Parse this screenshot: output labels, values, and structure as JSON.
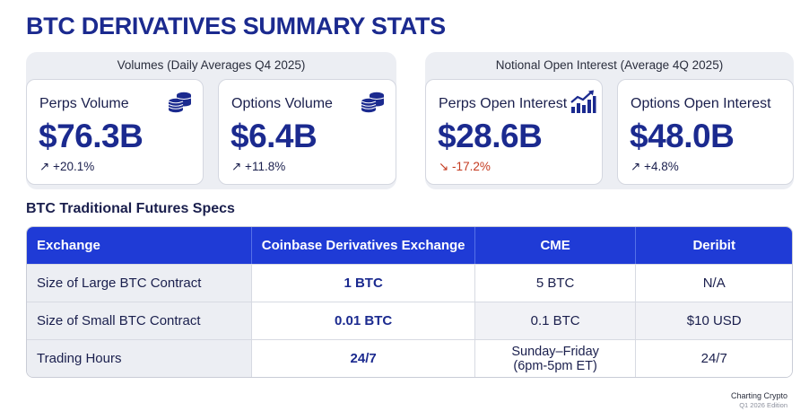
{
  "title": "BTC DERIVATIVES SUMMARY STATS",
  "volumes": {
    "label": "Volumes (Daily Averages Q4 2025)",
    "perps": {
      "label": "Perps Volume",
      "value": "$76.3B",
      "change": "↗ +20.1%",
      "icon": "coins-stack-icon"
    },
    "options": {
      "label": "Options Volume",
      "value": "$6.4B",
      "change": "↗ +11.8%",
      "icon": "coins-stack-icon"
    }
  },
  "open_interest": {
    "label": "Notional Open Interest (Average 4Q 2025)",
    "perps": {
      "label": "Perps Open Interest",
      "value": "$28.6B",
      "change": "↘ -17.2%",
      "icon": "bar-chart-trend-icon"
    },
    "options": {
      "label": "Options Open Interest",
      "value": "$48.0B",
      "change": "↗ +4.8%"
    }
  },
  "specs": {
    "title": "BTC Traditional Futures Specs",
    "headers": [
      "Exchange",
      "Coinbase Derivatives Exchange",
      "CME",
      "Deribit"
    ],
    "rows": [
      [
        "Size of Large BTC Contract",
        "1 BTC",
        "5 BTC",
        "N/A"
      ],
      [
        "Size of Small BTC Contract",
        "0.01 BTC",
        "0.1 BTC",
        "$10 USD"
      ],
      [
        "Trading Hours",
        "24/7",
        "Sunday–Friday",
        "24/7"
      ]
    ],
    "cme_hours_line2": "(6pm-5pm ET)"
  },
  "footer": {
    "brand": "Charting Crypto",
    "edition": "Q1 2026 Edition"
  },
  "colors": {
    "accent": "#1b2a8f",
    "header_bg": "#1f3bd6",
    "negative": "#c43a1f"
  }
}
